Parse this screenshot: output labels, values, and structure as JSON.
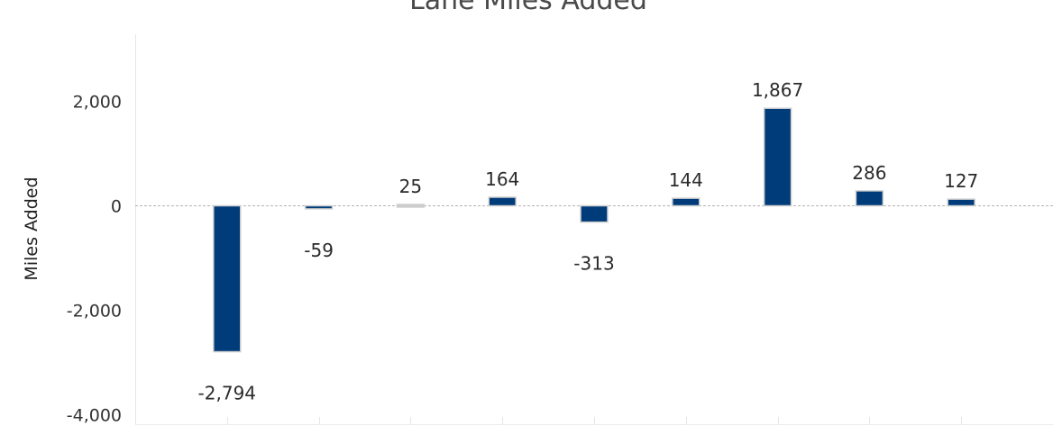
{
  "chart_data": {
    "type": "bar",
    "title": "Lane Miles Added",
    "xlabel": "",
    "ylabel": "Miles Added",
    "ylim": [
      -4200,
      3200
    ],
    "yticks": [
      2000,
      0,
      -2000,
      -4000
    ],
    "ytick_labels": [
      "2,000",
      "0",
      "-2,000",
      "-4,000"
    ],
    "grid": false,
    "zero_line": "dashed",
    "series": [
      {
        "values": [
          -2794,
          -59,
          25,
          164,
          -313,
          144,
          1867,
          286,
          127
        ],
        "labels": [
          "-2,794",
          "-59",
          "25",
          "164",
          "-313",
          "144",
          "1,867",
          "286",
          "127"
        ],
        "colors": [
          "#003b7a",
          "#003b7a",
          "#c8c8c8",
          "#003b7a",
          "#003b7a",
          "#003b7a",
          "#003b7a",
          "#003b7a",
          "#003b7a"
        ]
      }
    ],
    "bar_color": "#003b7a",
    "bar_stroke": "#d0d0d0",
    "axis_color": "#e6e6e6"
  }
}
